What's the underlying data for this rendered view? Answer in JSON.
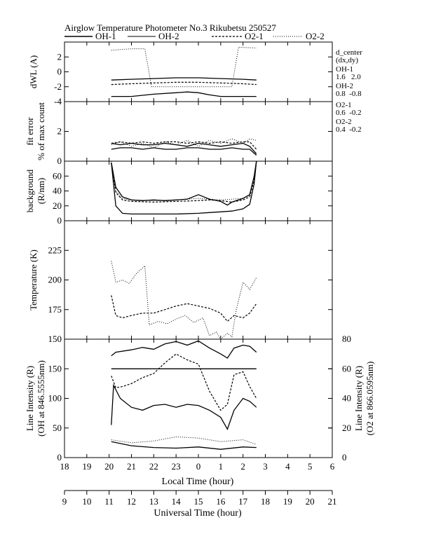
{
  "chart_data": {
    "type": "line",
    "title": "Airglow Temperature Photometer No.3  Rikubetsu    250527",
    "legend": {
      "placement": "top",
      "entries": [
        {
          "name": "OH-1",
          "style": "solid"
        },
        {
          "name": "OH-2",
          "style": "solid"
        },
        {
          "name": "O2-1",
          "style": "dashed"
        },
        {
          "name": "O2-2",
          "style": "dotted"
        }
      ]
    },
    "x_axis_local": {
      "label": "Local Time (hour)",
      "ticks": [
        "18",
        "19",
        "20",
        "21",
        "22",
        "23",
        "0",
        "1",
        "2",
        "3",
        "4",
        "5",
        "6"
      ]
    },
    "x_axis_ut": {
      "label": "Universal Time (hour)",
      "ticks": [
        "9",
        "10",
        "11",
        "12",
        "13",
        "14",
        "15",
        "16",
        "17",
        "18",
        "19",
        "20",
        "21"
      ]
    },
    "side_note": {
      "header": "d_center",
      "subheader": "(dx,dy)",
      "items": [
        {
          "name": "OH-1",
          "value": "1.6   2.0"
        },
        {
          "name": "OH-2",
          "value": "0.8  -0.8"
        },
        {
          "name": "O2-1",
          "value": "0.6  -0.2"
        },
        {
          "name": "O2-2",
          "value": "0.4  -0.2"
        }
      ]
    },
    "panels": [
      {
        "id": "dwl",
        "ylabel": [
          "dWL (A)"
        ],
        "ylim": [
          -4,
          4
        ],
        "yticks": [
          "2",
          "0",
          "-2",
          "-4"
        ],
        "series": [
          {
            "name": "OH-1",
            "style": "solid",
            "x": [
              11.1,
              12,
              13,
              14,
              14.5,
              15,
              15.5,
              16,
              17,
              17.6
            ],
            "y": [
              -3.3,
              -3.3,
              -3.0,
              -2.8,
              -2.7,
              -2.8,
              -3.1,
              -3.3,
              -3.3,
              -3.3
            ]
          },
          {
            "name": "OH-2",
            "style": "solid",
            "x": [
              11.1,
              12,
              13,
              14,
              15,
              16,
              17,
              17.6
            ],
            "y": [
              -1.1,
              -1.0,
              -0.9,
              -0.8,
              -0.8,
              -0.9,
              -1.0,
              -1.1
            ]
          },
          {
            "name": "O2-1",
            "style": "dashed",
            "x": [
              11.1,
              12,
              13,
              14,
              15,
              16,
              17,
              17.6
            ],
            "y": [
              -1.7,
              -1.6,
              -1.5,
              -1.4,
              -1.4,
              -1.5,
              -1.6,
              -1.7
            ]
          },
          {
            "name": "O2-2",
            "style": "dotted",
            "x": [
              11.1,
              12,
              12.6,
              12.9,
              16.5,
              16.8,
              17.6
            ],
            "y": [
              2.9,
              3.1,
              3.1,
              -2.0,
              -2.0,
              3.3,
              3.2
            ]
          }
        ]
      },
      {
        "id": "fit",
        "ylabel": [
          "fit error",
          "% of max count"
        ],
        "ylim": [
          0,
          4
        ],
        "yticks": [
          "0",
          "2"
        ],
        "series": [
          {
            "name": "OH-1",
            "style": "solid",
            "x": [
              11.1,
              11.5,
              12,
              12.5,
              13,
              13.5,
              14,
              14.5,
              15,
              15.5,
              16,
              16.5,
              17,
              17.3,
              17.6
            ],
            "y": [
              0.8,
              0.9,
              0.9,
              0.8,
              0.9,
              0.8,
              0.8,
              0.9,
              0.9,
              0.8,
              0.8,
              0.9,
              0.8,
              0.8,
              0.4
            ]
          },
          {
            "name": "OH-2",
            "style": "solid",
            "x": [
              11.1,
              11.5,
              12,
              12.5,
              13,
              13.5,
              14,
              14.5,
              15,
              15.5,
              16,
              16.5,
              17,
              17.3,
              17.6
            ],
            "y": [
              1.2,
              1.1,
              1.2,
              1.1,
              1.1,
              1.2,
              1.1,
              1.0,
              1.2,
              1.1,
              1.0,
              1.1,
              1.2,
              1.0,
              0.5
            ]
          },
          {
            "name": "O2-1",
            "style": "dashed",
            "x": [
              11.1,
              11.5,
              12,
              12.5,
              13,
              13.5,
              14,
              14.5,
              15,
              15.5,
              16,
              16.5,
              17,
              17.3,
              17.6
            ],
            "y": [
              1.2,
              1.3,
              1.2,
              1.3,
              1.2,
              1.3,
              1.3,
              1.2,
              1.3,
              1.2,
              1.3,
              1.2,
              1.3,
              1.3,
              0.8
            ]
          },
          {
            "name": "O2-2",
            "style": "dotted",
            "x": [
              11.1,
              11.5,
              12,
              12.5,
              13,
              13.5,
              14,
              14.5,
              15,
              15.5,
              16,
              16.5,
              17,
              17.3,
              17.6
            ],
            "y": [
              1.1,
              1.3,
              1.0,
              1.2,
              0.9,
              1.3,
              1.1,
              1.4,
              1.0,
              1.4,
              1.2,
              1.5,
              1.2,
              1.5,
              1.4
            ]
          }
        ]
      },
      {
        "id": "bg",
        "ylabel": [
          "background",
          "(R/nm)"
        ],
        "ylim": [
          0,
          80
        ],
        "yticks": [
          "0",
          "20",
          "40",
          "60"
        ],
        "series": [
          {
            "name": "OH-1",
            "style": "solid",
            "x": [
              11.1,
              11.3,
              11.6,
              12,
              13,
              14,
              15,
              15.5,
              16,
              16.5,
              17,
              17.3,
              17.5,
              17.6
            ],
            "y": [
              78,
              20,
              10,
              9,
              9,
              9,
              10,
              11,
              12,
              13,
              16,
              22,
              50,
              80
            ]
          },
          {
            "name": "OH-2",
            "style": "solid",
            "x": [
              11.1,
              11.3,
              11.6,
              12,
              12.5,
              13,
              13.5,
              14,
              14.5,
              15,
              15.5,
              16,
              16.3,
              16.5,
              17,
              17.3,
              17.5,
              17.6
            ],
            "y": [
              78,
              45,
              32,
              28,
              27,
              28,
              27,
              28,
              29,
              35,
              29,
              26,
              21,
              25,
              30,
              35,
              60,
              80
            ]
          },
          {
            "name": "O2-1",
            "style": "dashed",
            "x": [
              11.1,
              11.3,
              11.6,
              12,
              13,
              14,
              15,
              15.5,
              16,
              16.5,
              17,
              17.3,
              17.5,
              17.6
            ],
            "y": [
              78,
              38,
              28,
              26,
              25,
              26,
              27,
              28,
              27,
              25,
              28,
              32,
              55,
              80
            ]
          },
          {
            "name": "O2-2",
            "style": "dotted",
            "x": [
              11.1,
              11.3,
              11.6,
              12,
              13,
              14,
              15,
              16,
              17,
              17.3,
              17.5,
              17.6
            ],
            "y": [
              80,
              40,
              30,
              28,
              27,
              28,
              30,
              28,
              30,
              34,
              60,
              80
            ]
          }
        ]
      },
      {
        "id": "temp",
        "ylabel": [
          "Temperature (K)"
        ],
        "ylim": [
          150,
          250
        ],
        "yticks": [
          "150",
          "175",
          "200",
          "225"
        ],
        "series": [
          {
            "name": "O2-1",
            "style": "dashed",
            "x": [
              11.1,
              11.3,
              11.6,
              12,
              12.5,
              13,
              13.5,
              14,
              14.5,
              15,
              15.5,
              16,
              16.3,
              16.6,
              17,
              17.3,
              17.6
            ],
            "y": [
              187,
              170,
              168,
              170,
              172,
              172,
              175,
              178,
              180,
              178,
              176,
              172,
              165,
              170,
              168,
              172,
              180
            ]
          },
          {
            "name": "O2-2",
            "style": "dotted",
            "x": [
              11.1,
              11.3,
              11.6,
              11.9,
              12.2,
              12.6,
              12.8,
              13.2,
              13.6,
              14,
              14.4,
              14.8,
              15.2,
              15.5,
              15.8,
              16,
              16.3,
              16.5,
              16.7,
              17,
              17.3,
              17.6
            ],
            "y": [
              216,
              198,
              200,
              197,
              205,
              212,
              162,
              165,
              163,
              167,
              170,
              164,
              168,
              153,
              156,
              150,
              155,
              152,
              175,
              198,
              192,
              202
            ]
          }
        ]
      },
      {
        "id": "int",
        "ylabel": [
          "Line Intensity (R)",
          "(OH at 846.5555nm)"
        ],
        "ylabel_right": [
          "Line Intensity (R)",
          "(O2 at 866.0595nm)"
        ],
        "ylim": [
          0,
          200
        ],
        "ylim_right": [
          0,
          80
        ],
        "yticks": [
          "0",
          "50",
          "100",
          "150"
        ],
        "yticks_right": [
          "0",
          "20",
          "40",
          "60",
          "80"
        ],
        "series": [
          {
            "name": "OH-1",
            "style": "solid",
            "x": [
              11.1,
              11.2,
              11.5,
              12,
              12.5,
              13,
              13.5,
              14,
              14.5,
              15,
              15.5,
              16,
              16.3,
              16.6,
              17,
              17.3,
              17.6
            ],
            "y": [
              55,
              122,
              100,
              85,
              80,
              88,
              90,
              85,
              90,
              88,
              80,
              68,
              48,
              80,
              100,
              95,
              85
            ]
          },
          {
            "name": "OH-1",
            "style": "solid",
            "x": [
              11.1,
              17.6
            ],
            "y": [
              150,
              150
            ]
          },
          {
            "name": "OH-2",
            "style": "solid",
            "x": [
              11.1,
              11.3,
              12,
              12.5,
              13,
              13.5,
              14,
              14.5,
              15,
              15.5,
              16,
              16.3,
              16.6,
              17,
              17.3,
              17.6
            ],
            "y": [
              172,
              178,
              182,
              186,
              183,
              192,
              196,
              190,
              197,
              185,
              175,
              168,
              185,
              190,
              188,
              178
            ]
          },
          {
            "name": "O2-1",
            "style": "dashed",
            "x": [
              11.1,
              11.3,
              11.6,
              12,
              12.5,
              13,
              13.5,
              14,
              14.5,
              15,
              15.5,
              16,
              16.3,
              16.6,
              17,
              17.3,
              17.6
            ],
            "y": [
              138,
              118,
              120,
              125,
              135,
              142,
              160,
              175,
              165,
              158,
              112,
              80,
              90,
              140,
              145,
              120,
              100
            ]
          },
          {
            "name": "OH-1",
            "style": "solid",
            "x": [
              11.1,
              12,
              13,
              14,
              15,
              16,
              17,
              17.6
            ],
            "y": [
              27,
              20,
              17,
              16,
              18,
              14,
              18,
              17
            ]
          },
          {
            "name": "O2-2",
            "style": "dotted",
            "x": [
              11.1,
              12,
              13,
              14,
              15,
              16,
              17,
              17.6
            ],
            "y": [
              30,
              25,
              28,
              35,
              33,
              27,
              30,
              22
            ]
          }
        ]
      }
    ]
  }
}
